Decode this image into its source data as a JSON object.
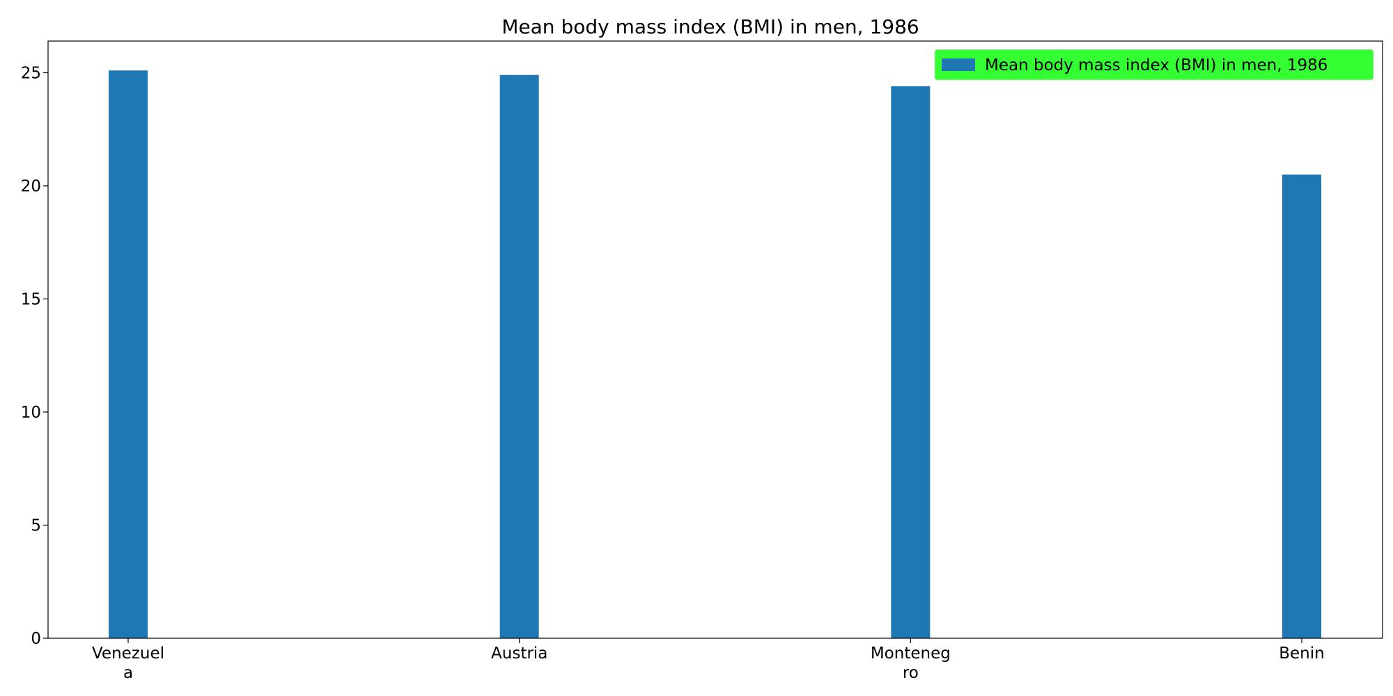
{
  "chart_data": {
    "type": "bar",
    "title": "Mean body mass index (BMI) in men, 1986",
    "categories": [
      "Venezuela",
      "Austria",
      "Montenegro",
      "Benin"
    ],
    "category_tick_lines": [
      [
        "Venezuel",
        "a"
      ],
      [
        "Austria"
      ],
      [
        "Monteneg",
        "ro"
      ],
      [
        "Benin"
      ]
    ],
    "series": [
      {
        "name": "Mean body mass index (BMI) in men, 1986",
        "values": [
          25.1,
          24.9,
          24.4,
          20.5
        ],
        "color": "#1f77b4"
      }
    ],
    "xlabel": "",
    "ylabel": "",
    "ylim": [
      0,
      26.4
    ],
    "yticks": [
      0,
      5,
      10,
      15,
      20,
      25
    ],
    "grid": false,
    "legend": {
      "position": "top-right",
      "background": "#33ff33"
    }
  }
}
